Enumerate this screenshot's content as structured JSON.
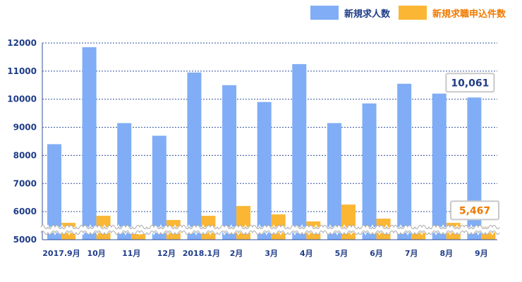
{
  "chart_data": {
    "type": "bar",
    "categories": [
      "2017.9月",
      "10月",
      "11月",
      "12月",
      "2018.1月",
      "2月",
      "3月",
      "4月",
      "5月",
      "6月",
      "7月",
      "8月",
      "9月"
    ],
    "series": [
      {
        "name": "新規求人数",
        "color": "#80adf5",
        "values": [
          8400,
          11850,
          9150,
          8700,
          10950,
          10500,
          9900,
          11250,
          9150,
          9850,
          10550,
          10200,
          10061
        ]
      },
      {
        "name": "新規求職申込件数",
        "color": "#fbb634",
        "values": [
          5600,
          5850,
          5200,
          5700,
          5850,
          6200,
          5900,
          5650,
          6250,
          5750,
          5350,
          5600,
          5467
        ]
      }
    ],
    "ylim": [
      5000,
      12000
    ],
    "yticks": [
      5000,
      6000,
      7000,
      8000,
      9000,
      10000,
      11000,
      12000
    ],
    "grid": true,
    "legend_position": "top-right",
    "axis_break": true,
    "annotations": [
      {
        "category": "9月",
        "series": 0,
        "text": "10,061",
        "color": "#1f3c88"
      },
      {
        "category": "9月",
        "series": 1,
        "text": "5,467",
        "color": "#f07a00"
      }
    ]
  }
}
